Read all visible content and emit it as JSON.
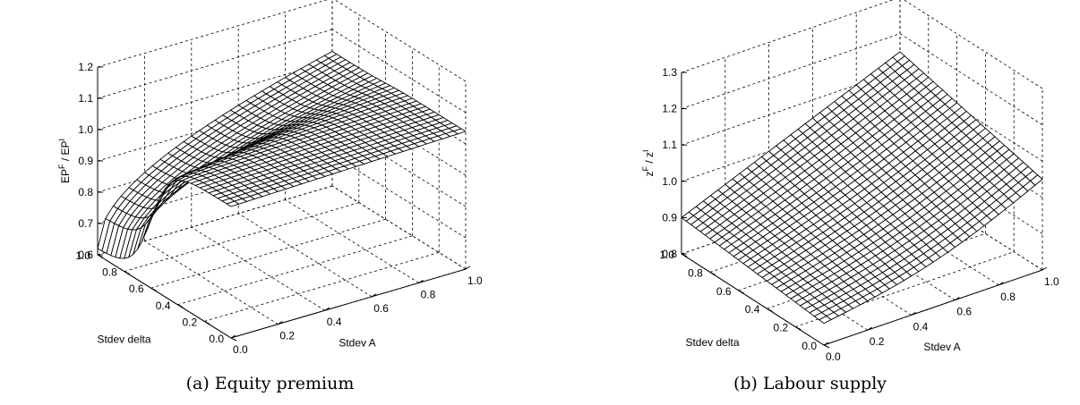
{
  "chart_data": [
    {
      "type": "surface",
      "caption": "(a) Equity premium",
      "xlabel": "Stdev A",
      "ylabel": "Stdev delta",
      "zlabel_main": "EP",
      "zlabel_sup1": "F",
      "zlabel_mid": " / EP",
      "zlabel_sup2": "I",
      "xlim": [
        0,
        1
      ],
      "ylim": [
        0,
        1
      ],
      "zlim": [
        0.6,
        1.2
      ],
      "x_ticks": [
        "0.0",
        "0.2",
        "0.4",
        "0.6",
        "0.8",
        "1.0"
      ],
      "y_ticks": [
        "0.0",
        "0.2",
        "0.4",
        "0.6",
        "0.8",
        "1.0"
      ],
      "z_ticks": [
        "0.6",
        "0.7",
        "0.8",
        "0.9",
        "1.0",
        "1.1",
        "1.2"
      ],
      "grid": true,
      "surface_corners": {
        "x0_y0": 1.02,
        "x1_y0": 1.04,
        "x0_y1": 0.62,
        "x1_y1": 1.03
      }
    },
    {
      "type": "surface",
      "caption": "(b) Labour supply",
      "xlabel": "Stdev A",
      "ylabel": "Stdev delta",
      "zlabel_main": "z",
      "zlabel_sup1": "F",
      "zlabel_mid": " / z",
      "zlabel_sup2": "I",
      "xlim": [
        0,
        1
      ],
      "ylim": [
        0,
        1
      ],
      "zlim": [
        0.8,
        1.3
      ],
      "x_ticks": [
        "0.0",
        "0.2",
        "0.4",
        "0.6",
        "0.8",
        "1.0"
      ],
      "y_ticks": [
        "0.0",
        "0.2",
        "0.4",
        "0.6",
        "0.8",
        "1.0"
      ],
      "z_ticks": [
        "0.8",
        "0.9",
        "1.0",
        "1.1",
        "1.2",
        "1.3"
      ],
      "grid": true,
      "surface_corners": {
        "x0_y0": 0.86,
        "x1_y0": 1.05,
        "x0_y1": 0.9,
        "x1_y1": 1.15
      }
    }
  ]
}
